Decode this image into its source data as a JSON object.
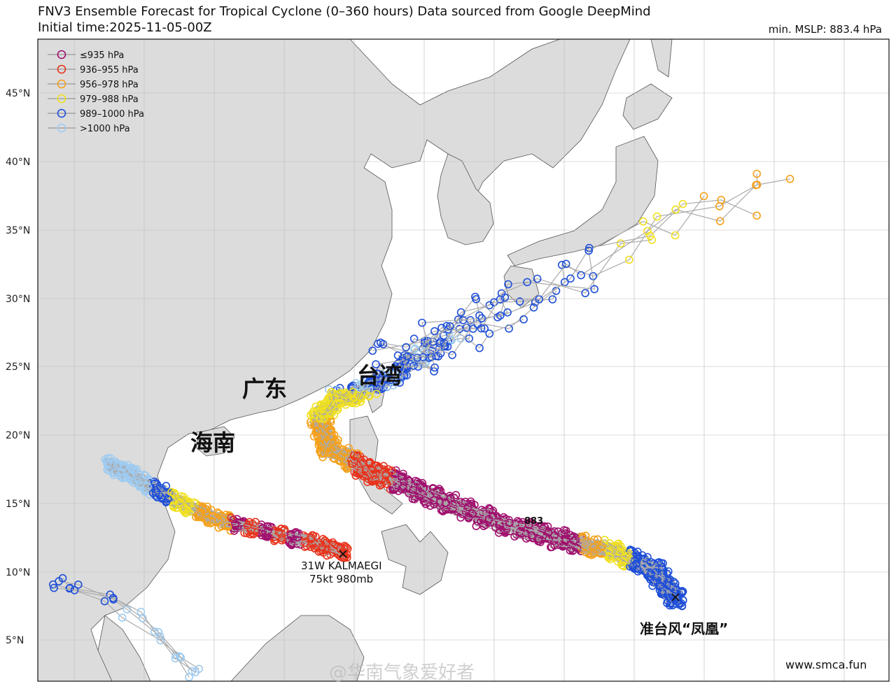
{
  "header": {
    "title": "FNV3 Ensemble Forecast for Tropical Cyclone (0–360 hours) Data sourced from Google DeepMind",
    "initial_time": "Initial time:2025-11-05-00Z",
    "min_mslp": "min. MSLP: 883.4 hPa"
  },
  "axis": {
    "lat_labels": [
      "45°N",
      "40°N",
      "35°N",
      "30°N",
      "25°N",
      "20°N",
      "15°N",
      "10°N",
      "5°N"
    ]
  },
  "legend": [
    {
      "label": "≤935 hPa",
      "color": "#a0106e"
    },
    {
      "label": "936–955 hPa",
      "color": "#e8331c"
    },
    {
      "label": "956–978 hPa",
      "color": "#f5a01a"
    },
    {
      "label": "979–988 hPa",
      "color": "#f0e020"
    },
    {
      "label": "989–1000 hPa",
      "color": "#1f4fd8"
    },
    {
      "label": ">1000 hPa",
      "color": "#9fcbf0"
    }
  ],
  "places": {
    "guangdong": "广东",
    "taiwan": "台湾",
    "hainan": "海南"
  },
  "storm_kalmaegi": {
    "name": "31W KALMAEGI",
    "info": "75kt 980mb"
  },
  "storm_fungwong": {
    "name": "准台风“凤凰”",
    "min_marker": "883"
  },
  "credit": "www.smca.fun",
  "watermark": "@华南气象爱好者"
}
